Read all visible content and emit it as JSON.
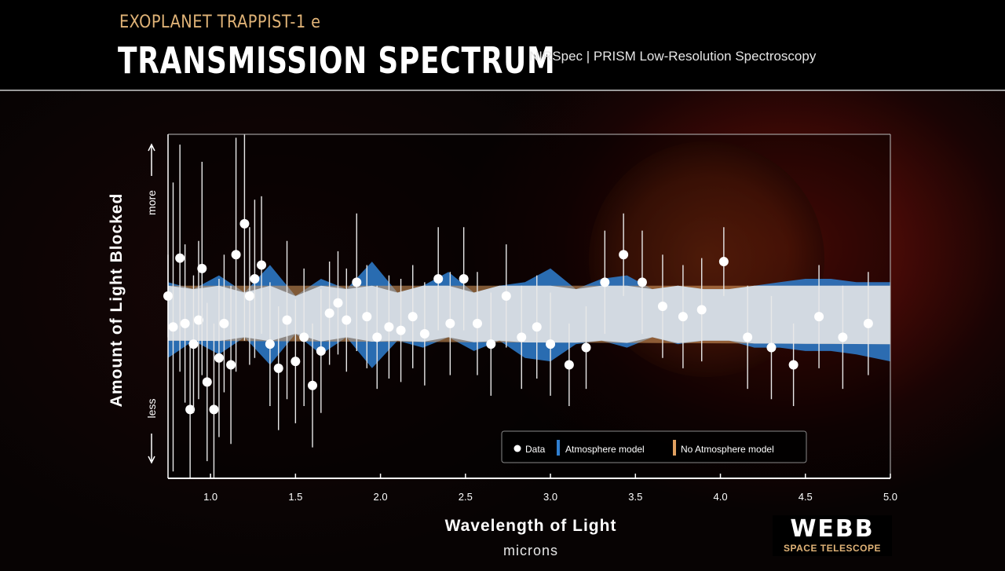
{
  "header": {
    "kicker": "EXOPLANET TRAPPIST-1 e",
    "title": "TRANSMISSION SPECTRUM",
    "instrument": "NIRSpec | PRISM Low-Resolution Spectroscopy"
  },
  "logo": {
    "word": "WEBB",
    "sub": "SPACE TELESCOPE"
  },
  "colors": {
    "data": "#ffffff",
    "atmosphere": "#2f7fd0",
    "no_atmosphere": "#e0a060",
    "axis": "#ffffff"
  },
  "chart_data": {
    "type": "scatter",
    "title": "TRANSMISSION SPECTRUM",
    "xlabel": "Wavelength of Light",
    "xunit": "microns",
    "ylabel": "Amount of Light Blocked",
    "y_more": "more",
    "y_less": "less",
    "xlim": [
      0.75,
      5.0
    ],
    "ylim": [
      0,
      100
    ],
    "xticks": [
      1.0,
      1.5,
      2.0,
      2.5,
      3.0,
      3.5,
      4.0,
      4.5,
      5.0
    ],
    "xtick_labels": [
      "1.0",
      "1.5",
      "2.0",
      "2.5",
      "3.0",
      "3.5",
      "4.0",
      "4.5",
      "5.0"
    ],
    "grid": false,
    "legend": {
      "placement": "bottom-right",
      "entries": [
        "Data",
        "Atmosphere model",
        "No Atmosphere model"
      ]
    },
    "series": [
      {
        "name": "Data",
        "points": [
          [
            0.75,
            53,
            12
          ],
          [
            0.78,
            44,
            42
          ],
          [
            0.82,
            64,
            33
          ],
          [
            0.85,
            45,
            23
          ],
          [
            0.88,
            20,
            20
          ],
          [
            0.9,
            39,
            20
          ],
          [
            0.93,
            46,
            23
          ],
          [
            0.95,
            61,
            31
          ],
          [
            0.98,
            28,
            23
          ],
          [
            1.02,
            20,
            25
          ],
          [
            1.05,
            35,
            23
          ],
          [
            1.08,
            45,
            20
          ],
          [
            1.12,
            33,
            23
          ],
          [
            1.15,
            65,
            34
          ],
          [
            1.2,
            74,
            34
          ],
          [
            1.23,
            53,
            20
          ],
          [
            1.26,
            58,
            23
          ],
          [
            1.3,
            62,
            20
          ],
          [
            1.35,
            39,
            18
          ],
          [
            1.4,
            32,
            18
          ],
          [
            1.45,
            46,
            23
          ],
          [
            1.5,
            34,
            18
          ],
          [
            1.55,
            41,
            20
          ],
          [
            1.6,
            27,
            18
          ],
          [
            1.65,
            37,
            18
          ],
          [
            1.7,
            48,
            15
          ],
          [
            1.75,
            51,
            15
          ],
          [
            1.8,
            46,
            15
          ],
          [
            1.86,
            57,
            20
          ],
          [
            1.92,
            47,
            15
          ],
          [
            1.98,
            41,
            15
          ],
          [
            2.05,
            44,
            15
          ],
          [
            2.12,
            43,
            15
          ],
          [
            2.19,
            47,
            15
          ],
          [
            2.26,
            42,
            15
          ],
          [
            2.34,
            58,
            15
          ],
          [
            2.41,
            45,
            15
          ],
          [
            2.49,
            58,
            15
          ],
          [
            2.57,
            45,
            15
          ],
          [
            2.65,
            39,
            15
          ],
          [
            2.74,
            53,
            15
          ],
          [
            2.83,
            41,
            15
          ],
          [
            2.92,
            44,
            15
          ],
          [
            3.0,
            39,
            15
          ],
          [
            3.11,
            33,
            12
          ],
          [
            3.21,
            38,
            12
          ],
          [
            3.32,
            57,
            15
          ],
          [
            3.43,
            65,
            12
          ],
          [
            3.54,
            57,
            15
          ],
          [
            3.66,
            50,
            15
          ],
          [
            3.78,
            47,
            15
          ],
          [
            3.89,
            49,
            15
          ],
          [
            4.02,
            63,
            10
          ],
          [
            4.16,
            41,
            15
          ],
          [
            4.3,
            38,
            15
          ],
          [
            4.43,
            33,
            12
          ],
          [
            4.58,
            47,
            15
          ],
          [
            4.72,
            41,
            15
          ],
          [
            4.87,
            45,
            15
          ]
        ]
      },
      {
        "name": "Atmosphere model",
        "band": {
          "x": [
            0.75,
            0.9,
            1.05,
            1.2,
            1.35,
            1.5,
            1.65,
            1.8,
            1.95,
            2.1,
            2.25,
            2.4,
            2.55,
            2.7,
            2.85,
            3.0,
            3.15,
            3.3,
            3.45,
            3.6,
            3.75,
            3.9,
            4.05,
            4.2,
            4.35,
            4.5,
            4.65,
            4.8,
            5.0
          ],
          "lo": [
            35,
            40,
            36,
            41,
            33,
            42,
            36,
            41,
            32,
            40,
            38,
            41,
            37,
            40,
            35,
            34,
            39,
            40,
            38,
            41,
            39,
            40,
            40,
            38,
            38,
            37,
            37,
            36,
            34
          ],
          "hi": [
            57,
            55,
            59,
            54,
            62,
            53,
            58,
            55,
            63,
            54,
            56,
            60,
            54,
            56,
            57,
            61,
            55,
            58,
            59,
            55,
            56,
            55,
            55,
            56,
            57,
            58,
            58,
            57,
            57
          ]
        }
      },
      {
        "name": "No Atmosphere model",
        "band": {
          "x": [
            0.75,
            5.0
          ],
          "lo": [
            40,
            39
          ],
          "hi": [
            56,
            56
          ]
        }
      }
    ]
  }
}
